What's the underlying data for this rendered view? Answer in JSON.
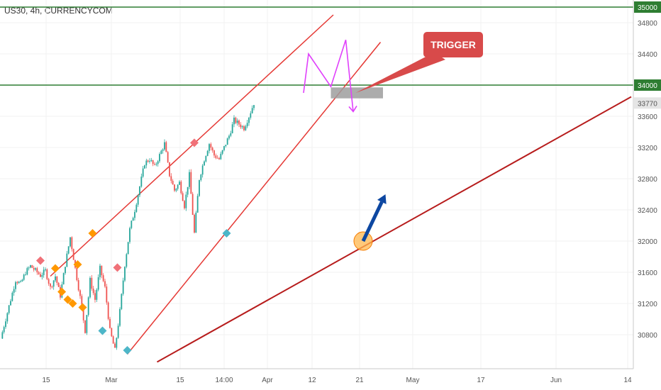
{
  "header": {
    "symbol_title": "US30, 4h, CURRENCYCOM"
  },
  "chart_data": {
    "type": "candlestick",
    "symbol": "US30",
    "timeframe": "4h",
    "source": "CURRENCYCOM",
    "title": "US30, 4h, CURRENCYCOM",
    "current_price": 33770,
    "y_ticks": [
      30800,
      31200,
      31600,
      32000,
      32400,
      32800,
      33200,
      33600,
      34000,
      34400,
      34800,
      35000
    ],
    "x_ticks": [
      "15",
      "Mar",
      "15",
      "14:00",
      "Apr",
      "12",
      "21",
      "May",
      "17",
      "Jun",
      "14"
    ],
    "price_path": [
      [
        0,
        30750
      ],
      [
        2,
        31250
      ],
      [
        3,
        31500
      ],
      [
        4,
        31450
      ],
      [
        5,
        31600
      ],
      [
        6,
        31680
      ],
      [
        8,
        31560
      ],
      [
        9,
        31620
      ],
      [
        10,
        31400
      ],
      [
        11,
        31550
      ],
      [
        12,
        31300
      ],
      [
        13,
        31700
      ],
      [
        14,
        32050
      ],
      [
        15,
        31650
      ],
      [
        16,
        31280
      ],
      [
        17,
        30850
      ],
      [
        18,
        31500
      ],
      [
        19,
        31250
      ],
      [
        20,
        31650
      ],
      [
        21,
        31400
      ],
      [
        22,
        30850
      ],
      [
        23,
        30600
      ],
      [
        24,
        31100
      ],
      [
        25,
        31700
      ],
      [
        26,
        32150
      ],
      [
        27,
        32400
      ],
      [
        28,
        32700
      ],
      [
        29,
        33000
      ],
      [
        30,
        33050
      ],
      [
        31,
        32950
      ],
      [
        32,
        33100
      ],
      [
        33,
        33250
      ],
      [
        34,
        32850
      ],
      [
        35,
        32650
      ],
      [
        36,
        32750
      ],
      [
        37,
        32450
      ],
      [
        38,
        32850
      ],
      [
        39,
        32100
      ],
      [
        40,
        32800
      ],
      [
        41,
        33050
      ],
      [
        42,
        33250
      ],
      [
        43,
        33100
      ],
      [
        44,
        33050
      ],
      [
        45,
        33200
      ],
      [
        46,
        33350
      ],
      [
        47,
        33550
      ],
      [
        48,
        33500
      ],
      [
        49,
        33450
      ],
      [
        50,
        33600
      ],
      [
        51,
        33770
      ]
    ],
    "markers": [
      {
        "type": "swing-high",
        "color": "#f07178",
        "x": 8,
        "y": 31750
      },
      {
        "type": "swing-high",
        "color": "#f07178",
        "x": 23.5,
        "y": 31660
      },
      {
        "type": "swing-high",
        "color": "#f07178",
        "x": 39,
        "y": 33260
      },
      {
        "type": "pattern",
        "color": "#ff9800",
        "x": 11,
        "y": 31650
      },
      {
        "type": "pattern",
        "color": "#ff9800",
        "x": 12.3,
        "y": 31350
      },
      {
        "type": "pattern",
        "color": "#ff9800",
        "x": 13.5,
        "y": 31250
      },
      {
        "type": "pattern",
        "color": "#ff9800",
        "x": 14.5,
        "y": 31200
      },
      {
        "type": "pattern",
        "color": "#ff9800",
        "x": 15.5,
        "y": 31700
      },
      {
        "type": "pattern",
        "color": "#ff9800",
        "x": 16.5,
        "y": 31150
      },
      {
        "type": "pattern",
        "color": "#ff9800",
        "x": 18.5,
        "y": 32100
      },
      {
        "type": "swing-low",
        "color": "#4db6c8",
        "x": 20.5,
        "y": 30850
      },
      {
        "type": "swing-low",
        "color": "#4db6c8",
        "x": 25.5,
        "y": 30600
      },
      {
        "type": "swing-low",
        "color": "#4db6c8",
        "x": 45.5,
        "y": 32100
      }
    ],
    "horizontal_levels": [
      {
        "value": 35000,
        "color": "#2e7d32",
        "label": "35000"
      },
      {
        "value": 34000,
        "color": "#2e7d32",
        "label": "34000"
      }
    ],
    "trendlines": [
      {
        "name": "channel-upper",
        "color": "#e53935",
        "from": [
          10,
          31550
        ],
        "to": [
          67,
          34900
        ]
      },
      {
        "name": "channel-lower",
        "color": "#e53935",
        "from": [
          25.5,
          30550
        ],
        "to": [
          76.5,
          34550
        ]
      },
      {
        "name": "long-term-support",
        "color": "#b71c1c",
        "from": [
          31.5,
          30450
        ],
        "to": [
          127,
          33850
        ]
      }
    ],
    "projection_path": [
      [
        61,
        33900
      ],
      [
        62,
        34400
      ],
      [
        66.5,
        33980
      ],
      [
        69.5,
        34580
      ],
      [
        71,
        33660
      ]
    ],
    "trigger_zone": {
      "x_from": 66.5,
      "x_to": 77,
      "y_low": 33830,
      "y_high": 33970,
      "color": "#9e9e9e"
    },
    "support_touch": {
      "x": 73,
      "y": 32000,
      "color": "#ffb74d"
    },
    "bullish_arrow": {
      "from": [
        73,
        32000
      ],
      "to": [
        77.5,
        32600
      ],
      "color": "#0d47a1"
    },
    "price_label_color": "#e5e5e5",
    "annotations": [
      {
        "text": "TRIGGER",
        "color": "#d84a4a",
        "points_to": [
          71.5,
          33900
        ]
      }
    ]
  }
}
